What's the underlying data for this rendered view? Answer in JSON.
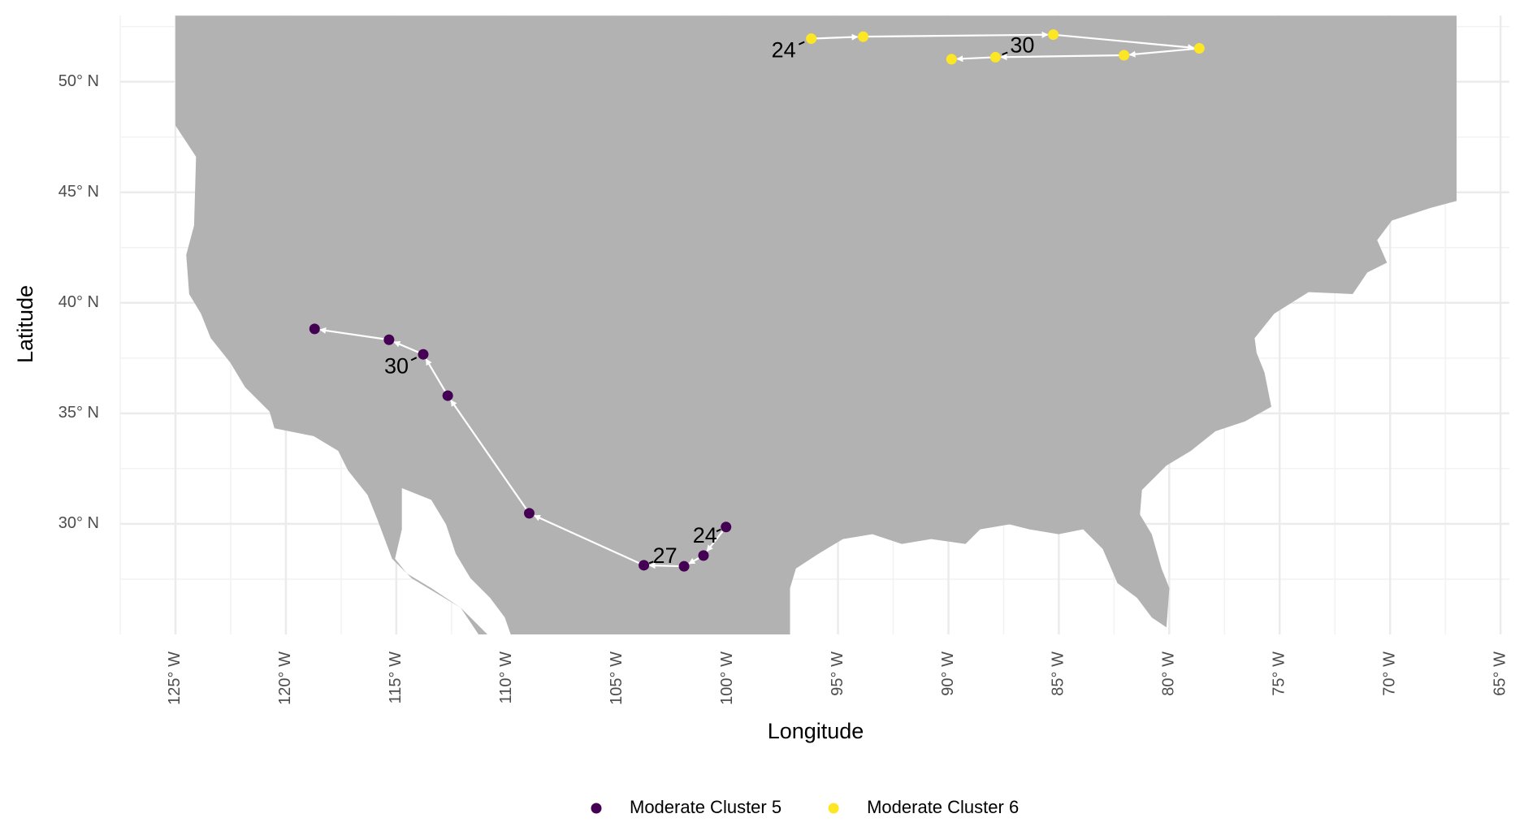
{
  "chart_data": {
    "type": "scatter",
    "x_label": "Longitude",
    "y_label": "Latitude",
    "xlim": [
      -127.5,
      -64.6
    ],
    "ylim": [
      25,
      53
    ],
    "xticks": [
      {
        "value": -125,
        "label": "125° W"
      },
      {
        "value": -120,
        "label": "120° W"
      },
      {
        "value": -115,
        "label": "115° W"
      },
      {
        "value": -110,
        "label": "110° W"
      },
      {
        "value": -105,
        "label": "105° W"
      },
      {
        "value": -100,
        "label": "100° W"
      },
      {
        "value": -95,
        "label": "95° W"
      },
      {
        "value": -90,
        "label": "90° W"
      },
      {
        "value": -85,
        "label": "85° W"
      },
      {
        "value": -80,
        "label": "80° W"
      },
      {
        "value": -75,
        "label": "75° W"
      },
      {
        "value": -70,
        "label": "70° W"
      },
      {
        "value": -65,
        "label": "65° W"
      }
    ],
    "yticks": [
      {
        "value": 30,
        "label": "30° N"
      },
      {
        "value": 35,
        "label": "35° N"
      },
      {
        "value": 40,
        "label": "40° N"
      },
      {
        "value": 45,
        "label": "45° N"
      },
      {
        "value": 50,
        "label": "50° N"
      }
    ],
    "grid": true,
    "legend": "bottom",
    "series": [
      {
        "name": "Moderate Cluster 5",
        "color": "#440154",
        "x": [
          -100.07,
          -101.09,
          -101.97,
          -103.79,
          -108.98,
          -112.67,
          -113.78,
          -115.33,
          -118.7
        ],
        "values": [
          29.86,
          28.57,
          28.08,
          28.13,
          30.48,
          35.8,
          37.67,
          38.33,
          38.82
        ],
        "point_labels": [
          "24",
          null,
          null,
          "27",
          null,
          null,
          "30",
          null,
          null
        ]
      },
      {
        "name": "Moderate Cluster 6",
        "color": "#FDE725",
        "x": [
          -96.21,
          -93.86,
          -85.25,
          -78.64,
          -82.05,
          -87.87,
          -89.86
        ],
        "values": [
          51.95,
          52.04,
          52.13,
          51.51,
          51.2,
          51.11,
          51.02
        ],
        "point_labels": [
          "24",
          null,
          null,
          null,
          null,
          "30",
          null
        ]
      }
    ]
  }
}
